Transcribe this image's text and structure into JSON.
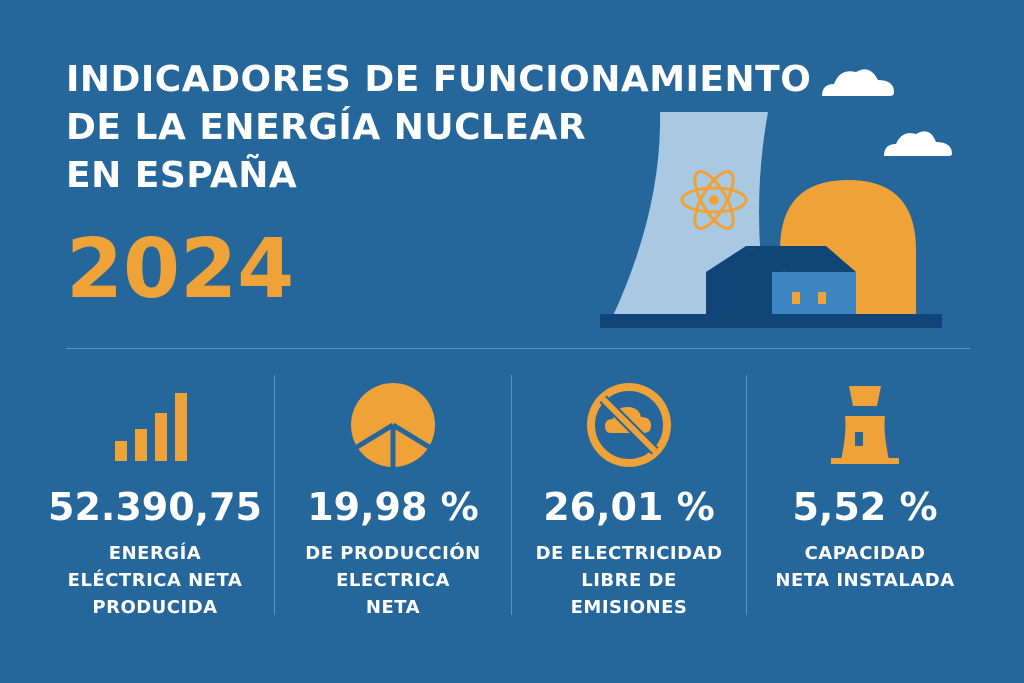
{
  "title": {
    "lines": [
      "INDICADORES DE FUNCIONAMIENTO",
      "DE LA ENERGÍA NUCLEAR",
      "EN ESPAÑA"
    ],
    "year": "2024"
  },
  "stats": [
    {
      "icon": "bar-chart-icon",
      "value": "52.390,75",
      "label_lines": [
        "ENERGÍA",
        "ELÉCTRICA NETA",
        "PRODUCIDA"
      ]
    },
    {
      "icon": "pie-chart-icon",
      "value": "19,98 %",
      "label_lines": [
        "DE PRODUCCIÓN",
        "ELECTRICA",
        "NETA"
      ]
    },
    {
      "icon": "no-emissions-icon",
      "value": "26,01 %",
      "label_lines": [
        "DE ELECTRICIDAD",
        "LIBRE DE",
        "EMISIONES"
      ]
    },
    {
      "icon": "power-plant-icon",
      "value": "5,52 %",
      "label_lines": [
        "CAPACIDAD",
        "NETA INSTALADA"
      ]
    }
  ],
  "colors": {
    "background": "#25679b",
    "accent": "#eea238",
    "text": "#ffffff",
    "cooling_tower": "#a9c9e3",
    "building_dark": "#0f4577",
    "building_light": "#3d86c2"
  }
}
